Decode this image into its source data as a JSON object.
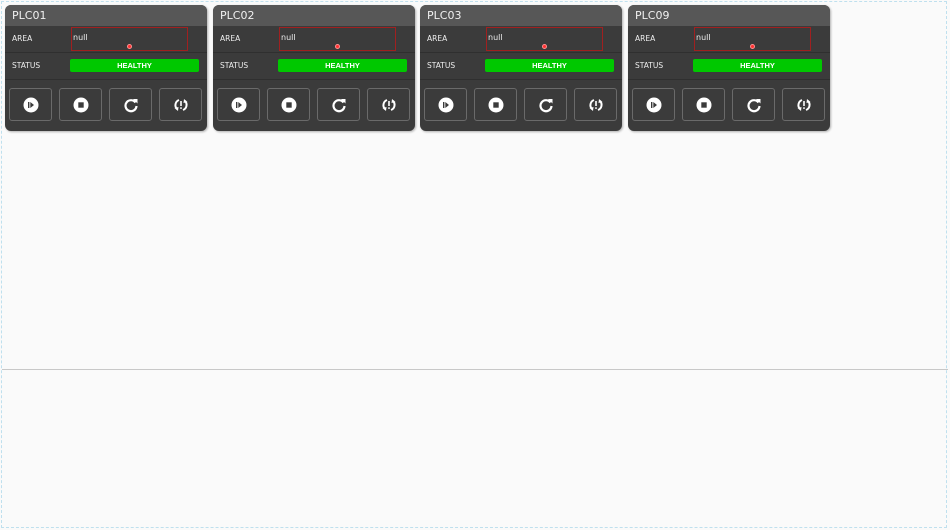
{
  "cards": [
    {
      "title": "PLC01",
      "area_label": "AREA",
      "area_value": "null",
      "status_label": "STATUS",
      "status": "HEALTHY"
    },
    {
      "title": "PLC02",
      "area_label": "AREA",
      "area_value": "null",
      "status_label": "STATUS",
      "status": "HEALTHY"
    },
    {
      "title": "PLC03",
      "area_label": "AREA",
      "area_value": "null",
      "status_label": "STATUS",
      "status": "HEALTHY"
    },
    {
      "title": "PLC09",
      "area_label": "AREA",
      "area_value": "null",
      "status_label": "STATUS",
      "status": "HEALTHY"
    }
  ],
  "buttons": [
    "play-pause-icon",
    "stop-icon",
    "refresh-icon",
    "sync-alert-icon"
  ],
  "colors": {
    "card_bg": "#3b3b3b",
    "header_bg": "#575757",
    "healthy": "#00c800",
    "area_border": "#a02020"
  }
}
